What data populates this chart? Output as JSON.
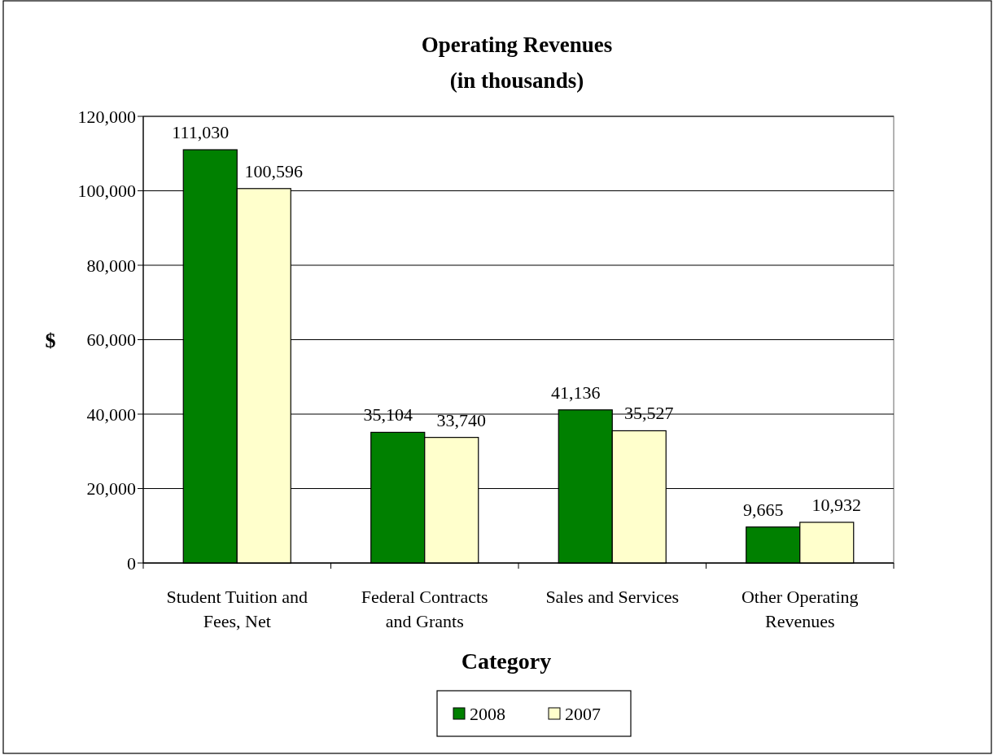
{
  "chart_data": {
    "type": "bar",
    "title": "Operating Revenues",
    "subtitle": "(in thousands)",
    "xlabel": "Category",
    "ylabel": "$",
    "categories": [
      "Student Tuition and Fees, Net",
      "Federal Contracts and Grants",
      "Sales and Services",
      "Other Operating Revenues"
    ],
    "series": [
      {
        "name": "2008",
        "color": "#008000",
        "values": [
          111030,
          35104,
          41136,
          9665
        ],
        "value_labels": [
          "111,030",
          "35,104",
          "41,136",
          "9,665"
        ]
      },
      {
        "name": "2007",
        "color": "#ffffcc",
        "values": [
          100596,
          33740,
          35527,
          10932
        ],
        "value_labels": [
          "100,596",
          "33,740",
          "35,527",
          "10,932"
        ]
      }
    ],
    "ylim": [
      0,
      120000
    ],
    "yticks": [
      {
        "value": 0,
        "label": "0"
      },
      {
        "value": 20000,
        "label": "20,000"
      },
      {
        "value": 40000,
        "label": "40,000"
      },
      {
        "value": 60000,
        "label": "60,000"
      },
      {
        "value": 80000,
        "label": "80,000"
      },
      {
        "value": 100000,
        "label": "100,000"
      },
      {
        "value": 120000,
        "label": "120,000"
      }
    ],
    "grid": "y",
    "legend": "bottom"
  }
}
